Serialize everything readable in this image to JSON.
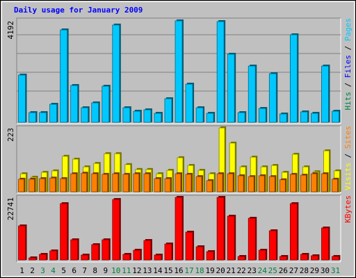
{
  "title": "Daily usage for January 2009",
  "categories": [
    "1",
    "2",
    "3",
    "4",
    "5",
    "6",
    "7",
    "8",
    "9",
    "10",
    "11",
    "12",
    "13",
    "14",
    "15",
    "16",
    "17",
    "18",
    "19",
    "20",
    "21",
    "22",
    "23",
    "24",
    "25",
    "26",
    "27",
    "28",
    "29",
    "30",
    "31"
  ],
  "category_colors": [
    "#000000",
    "#000000",
    "#008040",
    "#008040",
    "#000000",
    "#000000",
    "#000000",
    "#000000",
    "#000000",
    "#008040",
    "#008040",
    "#000000",
    "#000000",
    "#000000",
    "#000000",
    "#000000",
    "#008040",
    "#008040",
    "#000000",
    "#000000",
    "#000000",
    "#000000",
    "#000000",
    "#008040",
    "#008040",
    "#000000",
    "#000000",
    "#000000",
    "#000000",
    "#000000",
    "#008040"
  ],
  "legend_separator": " / ",
  "chart_data": [
    {
      "type": "bar",
      "ylim": [
        0,
        4192
      ],
      "yticks": [
        4192
      ],
      "series": [
        {
          "name": "Pages",
          "color": "#00c8ff",
          "values": [
            1953,
            402,
            402,
            746,
            3819,
            1522,
            603,
            804,
            1493,
            4020,
            603,
            459,
            517,
            373,
            976,
            4192,
            1579,
            603,
            373,
            4163,
            2814,
            402,
            2326,
            574,
            2010,
            345,
            3618,
            431,
            373,
            2326,
            459
          ]
        }
      ],
      "other_legend": [
        {
          "name": "Files",
          "color": "#0000ff"
        },
        {
          "name": "Hits",
          "color": "#008040"
        }
      ]
    },
    {
      "type": "bar",
      "ylim": [
        0,
        223
      ],
      "yticks": [
        223
      ],
      "series": [
        {
          "name": "Visits",
          "color": "#ffff00",
          "values": [
            63,
            51,
            68,
            73,
            124,
            114,
            87,
            99,
            133,
            133,
            95,
            78,
            78,
            63,
            75,
            119,
            92,
            75,
            63,
            223,
            170,
            87,
            121,
            87,
            92,
            68,
            131,
            87,
            70,
            143,
            73
          ]
        },
        {
          "name": "Sites",
          "color": "#ff8000",
          "values": [
            44,
            44,
            46,
            48,
            46,
            63,
            65,
            63,
            61,
            63,
            61,
            63,
            63,
            46,
            46,
            63,
            61,
            53,
            39,
            63,
            63,
            56,
            53,
            56,
            53,
            42,
            61,
            58,
            63,
            63,
            44
          ]
        }
      ]
    },
    {
      "type": "bar",
      "ylim": [
        0,
        22741
      ],
      "yticks": [
        22741
      ],
      "series": [
        {
          "name": "KBytes",
          "color": "#ff0000",
          "values": [
            12381,
            758,
            2021,
            3285,
            20467,
            7328,
            1769,
            5559,
            7328,
            21983,
            2021,
            3537,
            7075,
            1769,
            5811,
            22741,
            10107,
            4801,
            3032,
            22741,
            15919,
            1263,
            15161,
            3537,
            10612,
            1263,
            20467,
            2021,
            1516,
            11623,
            1263
          ]
        }
      ]
    }
  ]
}
